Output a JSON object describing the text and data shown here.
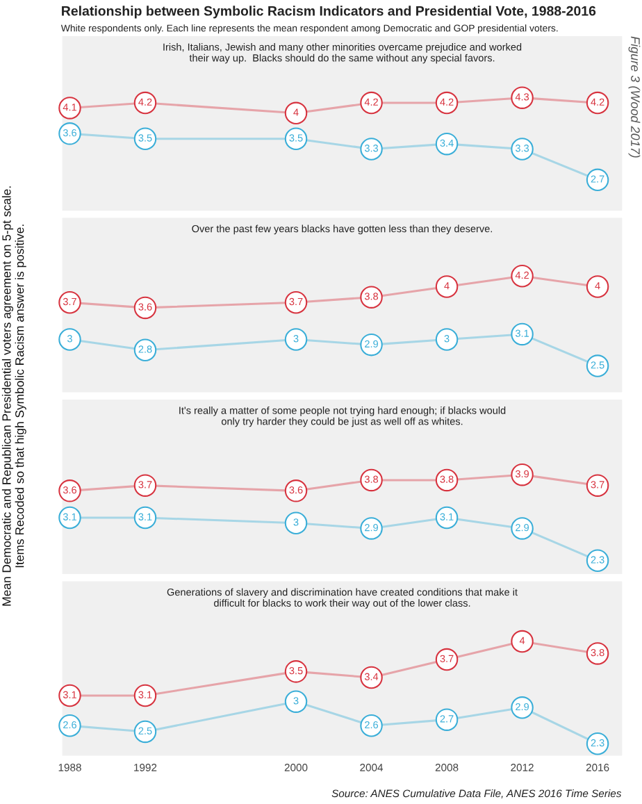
{
  "chart_data": [
    {
      "type": "line",
      "title": "Irish, Italians, Jewish and many other minorities overcame prejudice and worked\ntheir way up.  Blacks should do the same without any special favors.",
      "ylabel": "Mean Democratic and Republican Presidential voters agreement on 5-pt scale.\nItems Recoded so that high Symbolic Racism answer is positive.",
      "annotations": [
        "Relationship between Symbolic Racism Indicators and Presidential Vote, 1988-2016",
        "White respondents only. Each line represents the mean respondent among Democratic and GOP presidential voters.",
        "Figure 3 (Wood 2017)"
      ],
      "x": [
        1988,
        1992,
        2000,
        2004,
        2008,
        2012,
        2016
      ],
      "xlim": [
        1987.6,
        2017.3
      ],
      "xticks": [
        1988,
        1992,
        2000,
        2004,
        2008,
        2012,
        2016
      ],
      "ylim": [
        2.1,
        5.5
      ],
      "tick_labels": false,
      "data_labels": true,
      "marker": "circle",
      "grid": false,
      "series": [
        {
          "color": "#d7333f",
          "values": [
            4.1,
            4.2,
            4,
            4.2,
            4.2,
            4.3,
            4.2
          ]
        },
        {
          "color": "#3aaed8",
          "values": [
            3.6,
            3.5,
            3.5,
            3.3,
            3.4,
            3.3,
            2.7
          ]
        }
      ]
    },
    {
      "type": "line",
      "title": "Over the past few years blacks have gotten less than they deserve.",
      "x": [
        1988,
        1992,
        2000,
        2004,
        2008,
        2012,
        2016
      ],
      "xlim": [
        1987.6,
        2017.3
      ],
      "xticks": [
        1988,
        1992,
        2000,
        2004,
        2008,
        2012,
        2016
      ],
      "ylim": [
        2.0,
        5.3
      ],
      "tick_labels": false,
      "data_labels": true,
      "marker": "circle",
      "grid": false,
      "series": [
        {
          "color": "#d7333f",
          "values": [
            3.7,
            3.6,
            3.7,
            3.8,
            4,
            4.2,
            4
          ]
        },
        {
          "color": "#3aaed8",
          "values": [
            3,
            2.8,
            3,
            2.9,
            3,
            3.1,
            2.5
          ]
        }
      ]
    },
    {
      "type": "line",
      "title": "It's really a matter of some people not trying hard enough; if blacks would\nonly try harder they could be just as well off as whites.",
      "x": [
        1988,
        1992,
        2000,
        2004,
        2008,
        2012,
        2016
      ],
      "xlim": [
        1987.6,
        2017.3
      ],
      "xticks": [
        1988,
        1992,
        2000,
        2004,
        2008,
        2012,
        2016
      ],
      "ylim": [
        2.05,
        5.3
      ],
      "tick_labels": false,
      "data_labels": true,
      "marker": "circle",
      "grid": false,
      "series": [
        {
          "color": "#d7333f",
          "values": [
            3.6,
            3.7,
            3.6,
            3.8,
            3.8,
            3.9,
            3.7
          ]
        },
        {
          "color": "#3aaed8",
          "values": [
            3.1,
            3.1,
            3,
            2.9,
            3.1,
            2.9,
            2.3
          ]
        }
      ]
    },
    {
      "type": "line",
      "title": "Generations of slavery and discrimination have created conditions that make it\ndifficult for blacks to work their way out of the lower class.",
      "annotations": [
        "Source: ANES Cumulative Data File, ANES 2016 Time Series"
      ],
      "x": [
        1988,
        1992,
        2000,
        2004,
        2008,
        2012,
        2016
      ],
      "xlim": [
        1987.6,
        2017.3
      ],
      "xticks": [
        1988,
        1992,
        2000,
        2004,
        2008,
        2012,
        2016
      ],
      "ylim": [
        2.1,
        5.0
      ],
      "tick_labels": "x",
      "data_labels": true,
      "marker": "circle",
      "grid": false,
      "series": [
        {
          "color": "#d7333f",
          "values": [
            3.1,
            3.1,
            3.5,
            3.4,
            3.7,
            4,
            3.8
          ]
        },
        {
          "color": "#3aaed8",
          "values": [
            2.6,
            2.5,
            3,
            2.6,
            2.7,
            2.9,
            2.3
          ]
        }
      ]
    }
  ]
}
